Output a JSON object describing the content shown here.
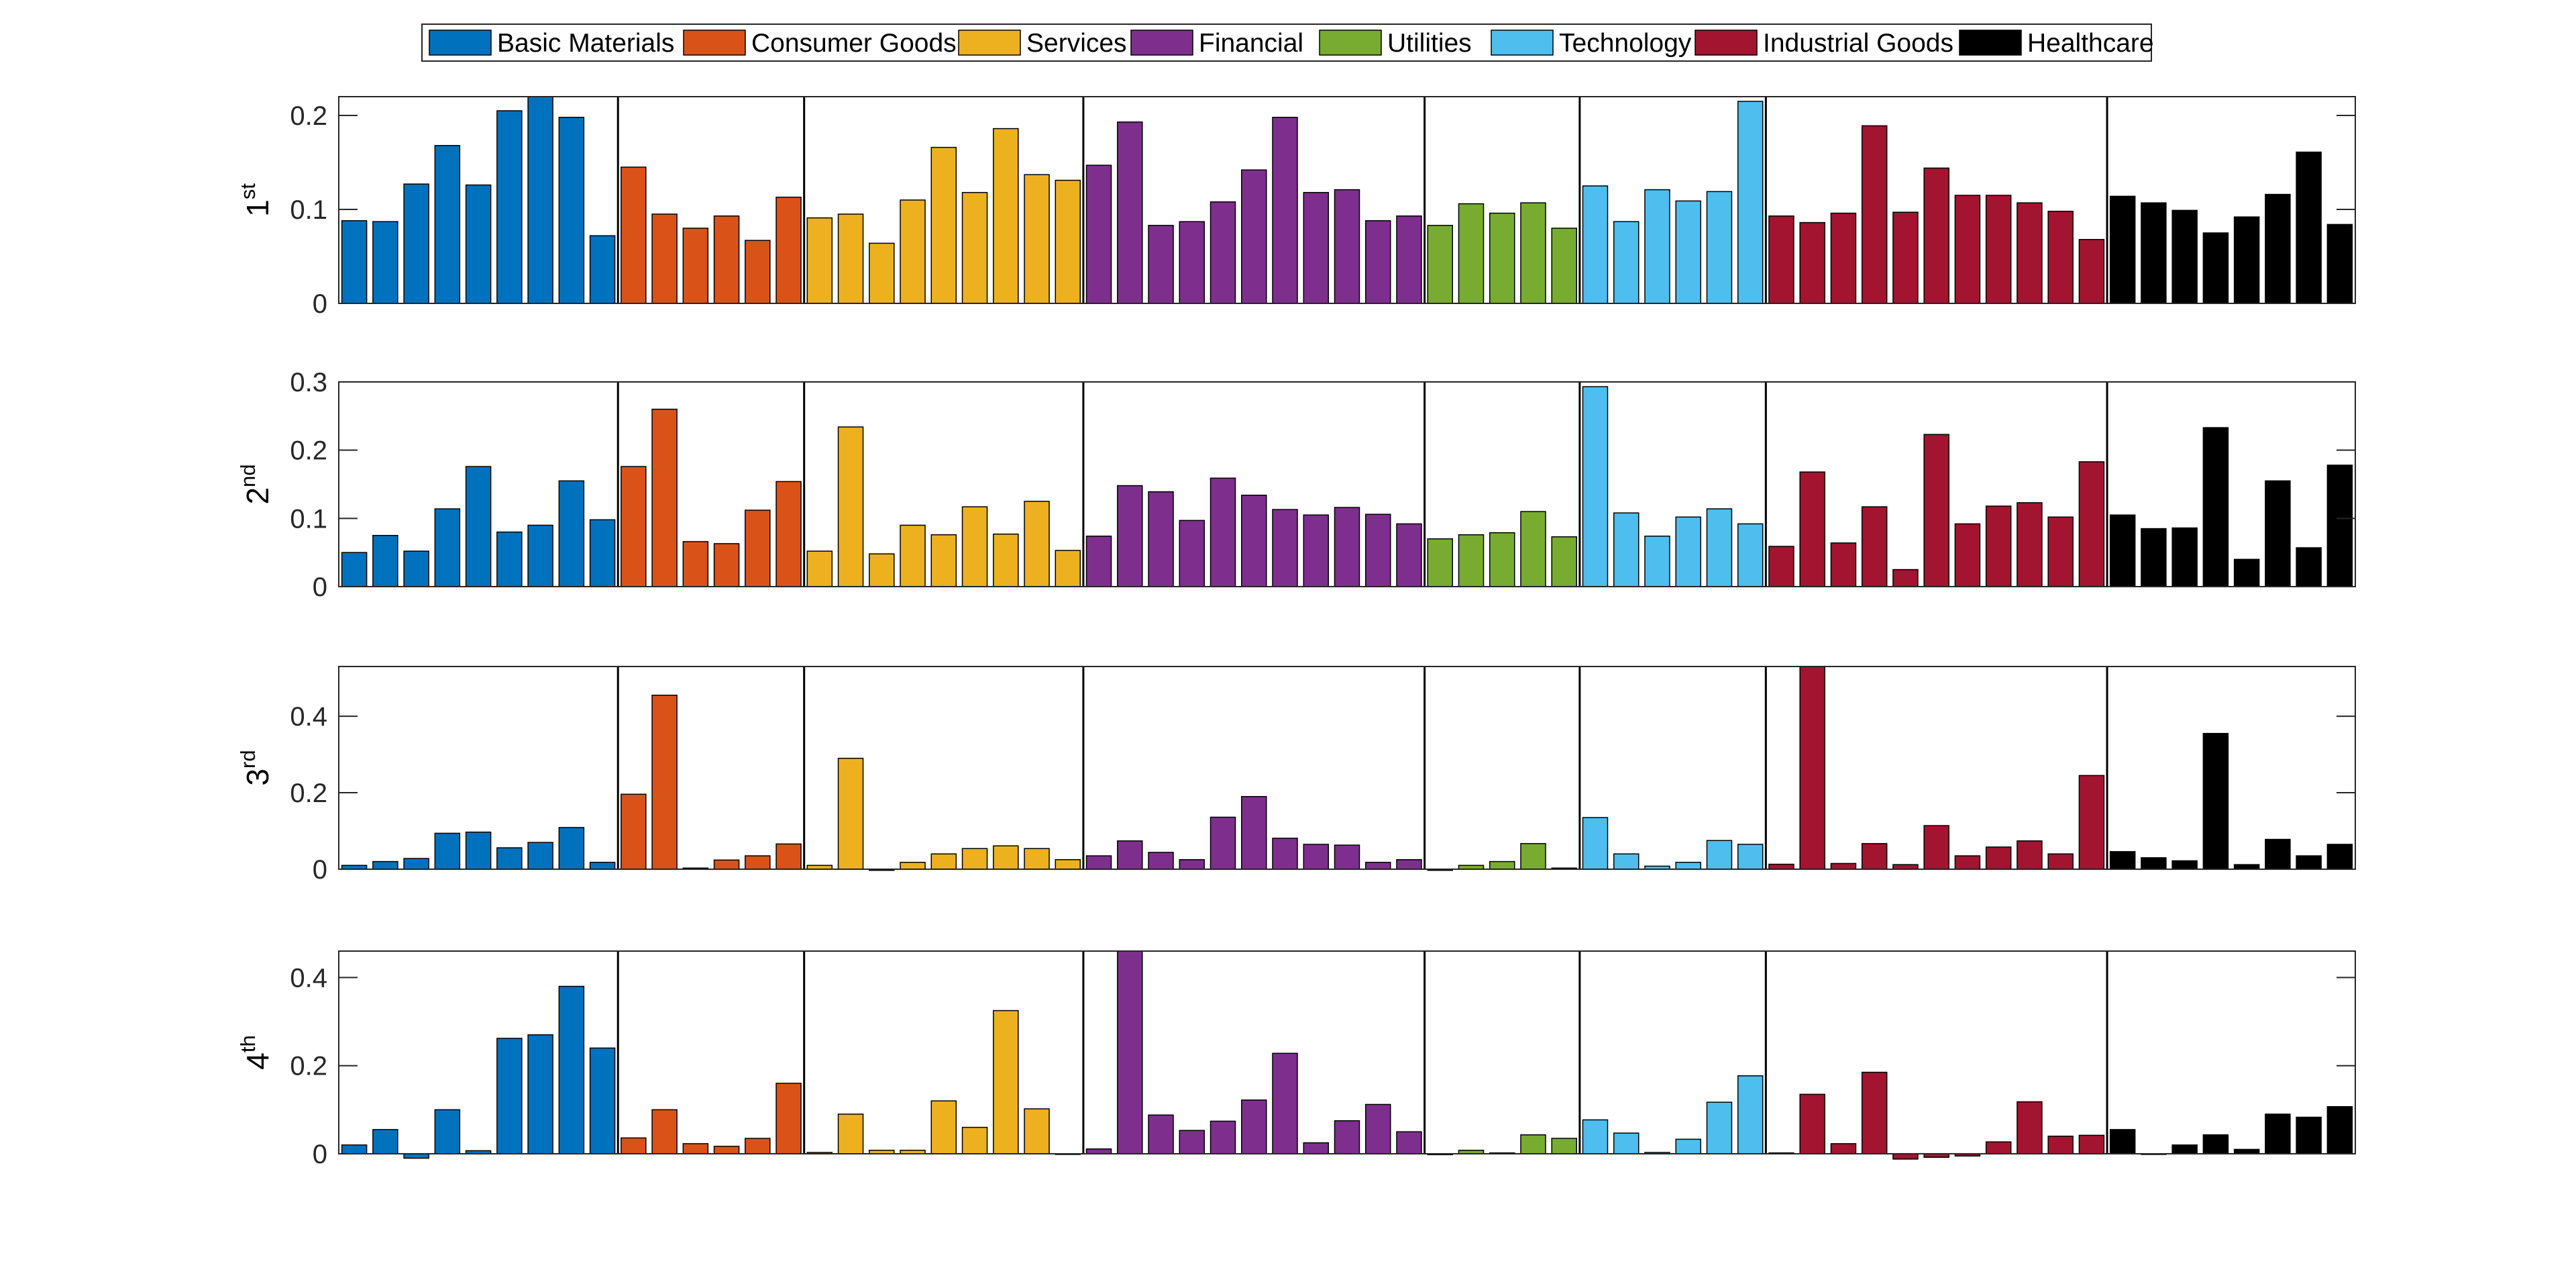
{
  "chart_data": {
    "type": "bar",
    "title": "",
    "legend": {
      "placement": "top-center",
      "entries": [
        {
          "name": "Basic Materials",
          "color": "#0072BD"
        },
        {
          "name": "Consumer Goods",
          "color": "#D95319"
        },
        {
          "name": "Services",
          "color": "#EDB120"
        },
        {
          "name": "Financial",
          "color": "#7E2F8E"
        },
        {
          "name": "Utilities",
          "color": "#77AC30"
        },
        {
          "name": "Technology",
          "color": "#4DBEEE"
        },
        {
          "name": "Industrial Goods",
          "color": "#A2142F"
        },
        {
          "name": "Healthcare",
          "color": "#000000"
        }
      ]
    },
    "groups": [
      {
        "name": "Basic Materials",
        "count": 9
      },
      {
        "name": "Consumer Goods",
        "count": 6
      },
      {
        "name": "Services",
        "count": 9
      },
      {
        "name": "Financial",
        "count": 11
      },
      {
        "name": "Utilities",
        "count": 5
      },
      {
        "name": "Technology",
        "count": 6
      },
      {
        "name": "Industrial Goods",
        "count": 11
      },
      {
        "name": "Healthcare",
        "count": 8
      }
    ],
    "grid": false,
    "panels": [
      {
        "ylabel_base": "1",
        "ylabel_sup": "st",
        "ylim": [
          0,
          0.22
        ],
        "yticks": [
          0,
          0.1,
          0.2
        ],
        "ytick_labels": [
          "0",
          "0.1",
          "0.2"
        ],
        "values": [
          [
            0.088,
            0.087,
            0.127,
            0.168,
            0.126,
            0.205,
            0.22,
            0.198,
            0.072
          ],
          [
            0.145,
            0.095,
            0.08,
            0.093,
            0.067,
            0.113
          ],
          [
            0.091,
            0.095,
            0.064,
            0.11,
            0.166,
            0.118,
            0.186,
            0.137,
            0.131
          ],
          [
            0.147,
            0.193,
            0.083,
            0.087,
            0.108,
            0.142,
            0.198,
            0.118,
            0.121,
            0.088,
            0.093
          ],
          [
            0.083,
            0.106,
            0.096,
            0.107,
            0.08
          ],
          [
            0.125,
            0.087,
            0.121,
            0.109,
            0.119,
            0.215
          ],
          [
            0.093,
            0.086,
            0.096,
            0.189,
            0.097,
            0.144,
            0.115,
            0.115,
            0.107,
            0.098,
            0.068
          ],
          [
            0.114,
            0.107,
            0.099,
            0.075,
            0.092,
            0.116,
            0.161,
            0.084
          ]
        ]
      },
      {
        "ylabel_base": "2",
        "ylabel_sup": "nd",
        "ylim": [
          0,
          0.3
        ],
        "yticks": [
          0,
          0.1,
          0.2,
          0.3
        ],
        "ytick_labels": [
          "0",
          "0.1",
          "0.2",
          "0.3"
        ],
        "values": [
          [
            0.05,
            0.075,
            0.052,
            0.114,
            0.176,
            0.08,
            0.09,
            0.155,
            0.098
          ],
          [
            0.176,
            0.26,
            0.066,
            0.063,
            0.112,
            0.154
          ],
          [
            0.052,
            0.234,
            0.048,
            0.09,
            0.076,
            0.117,
            0.077,
            0.125,
            0.053
          ],
          [
            0.074,
            0.148,
            0.139,
            0.097,
            0.159,
            0.134,
            0.113,
            0.105,
            0.116,
            0.106,
            0.092
          ],
          [
            0.07,
            0.076,
            0.079,
            0.11,
            0.073
          ],
          [
            0.293,
            0.108,
            0.074,
            0.102,
            0.114,
            0.092
          ],
          [
            0.059,
            0.168,
            0.064,
            0.117,
            0.025,
            0.223,
            0.092,
            0.118,
            0.123,
            0.102,
            0.183
          ],
          [
            0.105,
            0.085,
            0.086,
            0.233,
            0.04,
            0.155,
            0.057,
            0.178
          ]
        ]
      },
      {
        "ylabel_base": "3",
        "ylabel_sup": "rd",
        "ylim": [
          0,
          0.53
        ],
        "yticks": [
          0,
          0.2,
          0.4
        ],
        "ytick_labels": [
          "0",
          "0.2",
          "0.4"
        ],
        "values": [
          [
            0.01,
            0.02,
            0.028,
            0.094,
            0.097,
            0.056,
            0.07,
            0.109,
            0.018
          ],
          [
            0.196,
            0.455,
            0.003,
            0.024,
            0.035,
            0.066
          ],
          [
            0.01,
            0.29,
            -0.003,
            0.018,
            0.04,
            0.054,
            0.061,
            0.054,
            0.025
          ],
          [
            0.035,
            0.074,
            0.044,
            0.025,
            0.136,
            0.19,
            0.081,
            0.065,
            0.063,
            0.018,
            0.025
          ],
          [
            -0.003,
            0.01,
            0.02,
            0.067,
            0.003
          ],
          [
            0.135,
            0.04,
            0.008,
            0.018,
            0.075,
            0.065
          ],
          [
            0.013,
            0.53,
            0.015,
            0.067,
            0.012,
            0.114,
            0.035,
            0.058,
            0.074,
            0.04,
            0.245
          ],
          [
            0.046,
            0.03,
            0.022,
            0.355,
            0.012,
            0.078,
            0.035,
            0.065
          ]
        ]
      },
      {
        "ylabel_base": "4",
        "ylabel_sup": "th",
        "ylim": [
          0,
          0.46
        ],
        "yticks": [
          0,
          0.2,
          0.4
        ],
        "ytick_labels": [
          "0",
          "0.2",
          "0.4"
        ],
        "values": [
          [
            0.02,
            0.055,
            -0.01,
            0.1,
            0.007,
            0.262,
            0.27,
            0.38,
            0.24
          ],
          [
            0.036,
            0.1,
            0.023,
            0.017,
            0.035,
            0.16
          ],
          [
            0.003,
            0.09,
            0.008,
            0.008,
            0.12,
            0.06,
            0.325,
            0.102,
            0.0
          ],
          [
            0.011,
            0.46,
            0.088,
            0.053,
            0.074,
            0.122,
            0.228,
            0.025,
            0.075,
            0.112,
            0.05
          ],
          [
            -0.002,
            0.008,
            0.002,
            0.043,
            0.035
          ],
          [
            0.077,
            0.047,
            0.003,
            0.033,
            0.117,
            0.177
          ],
          [
            0.002,
            0.135,
            0.023,
            0.185,
            -0.012,
            -0.008,
            -0.005,
            0.027,
            0.118,
            0.04,
            0.042
          ],
          [
            0.055,
            0.0,
            0.02,
            0.043,
            0.01,
            0.09,
            0.083,
            0.107
          ]
        ]
      }
    ]
  }
}
